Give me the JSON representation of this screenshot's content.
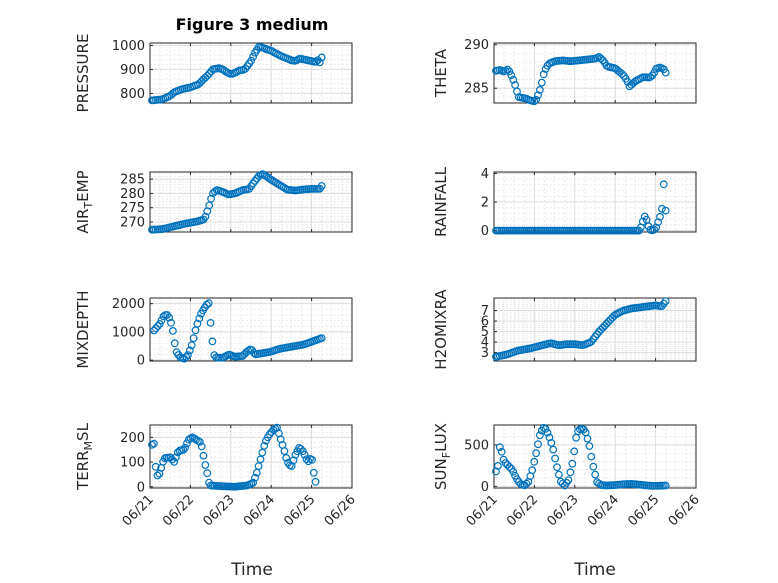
{
  "figure": {
    "title": "Figure 3 medium",
    "xlabel": "Time",
    "xticks": [
      "06/21",
      "06/22",
      "06/23",
      "06/24",
      "06/25",
      "06/26"
    ]
  },
  "colors": {
    "marker": "#0072BD",
    "axes": "#262626",
    "grid": "#dcdcdc"
  },
  "chart_data": [
    {
      "type": "scatter",
      "ylabel_main": "PRESSURE",
      "ylabel_sub": "",
      "xlim": [
        0,
        5
      ],
      "ylim": [
        760,
        1010
      ],
      "yticks": [
        800,
        900,
        1000
      ],
      "grid": true,
      "anchors": [
        [
          0.05,
          771
        ],
        [
          0.3,
          775
        ],
        [
          0.5,
          790
        ],
        [
          0.6,
          805
        ],
        [
          0.8,
          818
        ],
        [
          1.0,
          825
        ],
        [
          1.2,
          838
        ],
        [
          1.3,
          855
        ],
        [
          1.45,
          878
        ],
        [
          1.55,
          900
        ],
        [
          1.7,
          905
        ],
        [
          1.8,
          900
        ],
        [
          1.9,
          888
        ],
        [
          2.0,
          880
        ],
        [
          2.1,
          885
        ],
        [
          2.2,
          895
        ],
        [
          2.35,
          900
        ],
        [
          2.5,
          935
        ],
        [
          2.6,
          970
        ],
        [
          2.7,
          995
        ],
        [
          2.8,
          990
        ],
        [
          2.9,
          983
        ],
        [
          3.0,
          978
        ],
        [
          3.1,
          968
        ],
        [
          3.25,
          955
        ],
        [
          3.4,
          945
        ],
        [
          3.5,
          938
        ],
        [
          3.6,
          935
        ],
        [
          3.7,
          945
        ],
        [
          3.8,
          942
        ],
        [
          3.9,
          938
        ],
        [
          4.0,
          935
        ],
        [
          4.1,
          930
        ],
        [
          4.15,
          940
        ],
        [
          4.2,
          928
        ],
        [
          4.25,
          950
        ]
      ]
    },
    {
      "type": "scatter",
      "ylabel_main": "THETA",
      "ylabel_sub": "",
      "xlim": [
        0,
        5
      ],
      "ylim": [
        283.3,
        290.2
      ],
      "yticks": [
        285,
        290
      ],
      "grid": true,
      "anchors": [
        [
          0.05,
          287.0
        ],
        [
          0.15,
          287.1
        ],
        [
          0.25,
          286.9
        ],
        [
          0.35,
          287.2
        ],
        [
          0.45,
          286.3
        ],
        [
          0.55,
          285.0
        ],
        [
          0.6,
          284.0
        ],
        [
          0.8,
          283.8
        ],
        [
          0.9,
          283.6
        ],
        [
          1.0,
          283.5
        ],
        [
          1.05,
          283.7
        ],
        [
          1.15,
          285.0
        ],
        [
          1.25,
          287.0
        ],
        [
          1.35,
          287.8
        ],
        [
          1.5,
          288.1
        ],
        [
          1.7,
          288.2
        ],
        [
          1.9,
          288.1
        ],
        [
          2.1,
          288.2
        ],
        [
          2.3,
          288.3
        ],
        [
          2.5,
          288.4
        ],
        [
          2.6,
          288.6
        ],
        [
          2.7,
          288.2
        ],
        [
          2.8,
          287.5
        ],
        [
          3.0,
          287.3
        ],
        [
          3.2,
          286.5
        ],
        [
          3.3,
          285.8
        ],
        [
          3.35,
          285.2
        ],
        [
          3.5,
          285.8
        ],
        [
          3.7,
          286.3
        ],
        [
          3.85,
          286.2
        ],
        [
          3.95,
          286.6
        ],
        [
          4.0,
          287.2
        ],
        [
          4.1,
          287.4
        ],
        [
          4.2,
          287.2
        ],
        [
          4.25,
          286.8
        ]
      ]
    },
    {
      "type": "scatter",
      "ylabel_main": "AIR",
      "ylabel_sub": "T",
      "ylabel_tail": "EMP",
      "xlim": [
        0,
        5
      ],
      "ylim": [
        266.5,
        287.5
      ],
      "yticks": [
        270,
        275,
        280,
        285
      ],
      "grid": true,
      "anchors": [
        [
          0.05,
          267.3
        ],
        [
          0.3,
          267.5
        ],
        [
          0.6,
          268.5
        ],
        [
          0.9,
          269.5
        ],
        [
          1.2,
          270.3
        ],
        [
          1.35,
          271
        ],
        [
          1.45,
          275
        ],
        [
          1.55,
          280
        ],
        [
          1.65,
          281.2
        ],
        [
          1.8,
          280.5
        ],
        [
          1.95,
          279.6
        ],
        [
          2.1,
          280
        ],
        [
          2.3,
          281.2
        ],
        [
          2.45,
          281.5
        ],
        [
          2.55,
          283.5
        ],
        [
          2.7,
          286.2
        ],
        [
          2.8,
          286.8
        ],
        [
          2.9,
          285.8
        ],
        [
          3.0,
          284.8
        ],
        [
          3.2,
          283.0
        ],
        [
          3.4,
          281.3
        ],
        [
          3.6,
          281.0
        ],
        [
          3.8,
          281.4
        ],
        [
          4.0,
          281.6
        ],
        [
          4.2,
          281.6
        ],
        [
          4.25,
          282.6
        ]
      ]
    },
    {
      "type": "scatter",
      "ylabel_main": "RAINFALL",
      "ylabel_sub": "",
      "xlim": [
        0,
        5
      ],
      "ylim": [
        -0.1,
        4.1
      ],
      "yticks": [
        0,
        2,
        4
      ],
      "grid": true,
      "anchors": [
        [
          0.05,
          0
        ],
        [
          3.6,
          0
        ],
        [
          3.65,
          0.3
        ],
        [
          3.7,
          0.8
        ],
        [
          3.75,
          1.1
        ],
        [
          3.8,
          0.5
        ],
        [
          3.85,
          0.1
        ],
        [
          3.9,
          0
        ],
        [
          4.0,
          0.1
        ],
        [
          4.05,
          0.5
        ],
        [
          4.1,
          0.9
        ],
        [
          4.15,
          1.3
        ],
        [
          4.18,
          2.5
        ],
        [
          4.22,
          3.8
        ],
        [
          4.25,
          1.4
        ]
      ]
    },
    {
      "type": "scatter",
      "ylabel_main": "MIXDEPTH",
      "ylabel_sub": "",
      "xlim": [
        0,
        5
      ],
      "ylim": [
        -30,
        2200
      ],
      "yticks": [
        0,
        1000,
        2000
      ],
      "grid": true,
      "anchors": [
        [
          0.1,
          1050
        ],
        [
          0.25,
          1300
        ],
        [
          0.35,
          1600
        ],
        [
          0.45,
          1600
        ],
        [
          0.55,
          1200
        ],
        [
          0.6,
          700
        ],
        [
          0.65,
          300
        ],
        [
          0.75,
          100
        ],
        [
          0.85,
          50
        ],
        [
          0.95,
          200
        ],
        [
          1.05,
          600
        ],
        [
          1.15,
          1200
        ],
        [
          1.25,
          1600
        ],
        [
          1.35,
          1850
        ],
        [
          1.45,
          2050
        ],
        [
          1.5,
          1300
        ],
        [
          1.55,
          600
        ],
        [
          1.6,
          100
        ],
        [
          1.8,
          80
        ],
        [
          1.95,
          200
        ],
        [
          2.1,
          120
        ],
        [
          2.3,
          150
        ],
        [
          2.4,
          300
        ],
        [
          2.5,
          400
        ],
        [
          2.6,
          200
        ],
        [
          2.8,
          250
        ],
        [
          3.0,
          300
        ],
        [
          3.2,
          400
        ],
        [
          3.4,
          450
        ],
        [
          3.6,
          500
        ],
        [
          3.8,
          550
        ],
        [
          4.0,
          650
        ],
        [
          4.25,
          780
        ]
      ]
    },
    {
      "type": "scatter",
      "ylabel_main": "H2OMIXRA",
      "ylabel_sub": "",
      "xlim": [
        0,
        5
      ],
      "ylim": [
        2.2,
        8.2
      ],
      "yticks": [
        3,
        4,
        5,
        6,
        7
      ],
      "grid": true,
      "anchors": [
        [
          0.05,
          2.6
        ],
        [
          0.3,
          2.8
        ],
        [
          0.6,
          3.2
        ],
        [
          0.9,
          3.4
        ],
        [
          1.2,
          3.7
        ],
        [
          1.4,
          3.9
        ],
        [
          1.6,
          3.7
        ],
        [
          1.8,
          3.8
        ],
        [
          2.0,
          3.8
        ],
        [
          2.2,
          3.7
        ],
        [
          2.4,
          4.0
        ],
        [
          2.6,
          5.0
        ],
        [
          2.8,
          5.8
        ],
        [
          3.0,
          6.6
        ],
        [
          3.2,
          7.0
        ],
        [
          3.4,
          7.2
        ],
        [
          3.6,
          7.3
        ],
        [
          3.8,
          7.4
        ],
        [
          4.0,
          7.5
        ],
        [
          4.15,
          7.4
        ],
        [
          4.25,
          7.9
        ]
      ]
    },
    {
      "type": "scatter",
      "ylabel_main": "TERR",
      "ylabel_sub": "M",
      "ylabel_tail": "SL",
      "xlim": [
        0,
        5
      ],
      "ylim": [
        -5,
        250
      ],
      "yticks": [
        0,
        100,
        200
      ],
      "grid": true,
      "anchors": [
        [
          0.05,
          170
        ],
        [
          0.1,
          175
        ],
        [
          0.15,
          60
        ],
        [
          0.2,
          40
        ],
        [
          0.25,
          60
        ],
        [
          0.3,
          90
        ],
        [
          0.35,
          115
        ],
        [
          0.5,
          120
        ],
        [
          0.6,
          100
        ],
        [
          0.7,
          145
        ],
        [
          0.85,
          150
        ],
        [
          0.95,
          190
        ],
        [
          1.05,
          200
        ],
        [
          1.15,
          190
        ],
        [
          1.25,
          180
        ],
        [
          1.3,
          150
        ],
        [
          1.35,
          100
        ],
        [
          1.4,
          70
        ],
        [
          1.45,
          20
        ],
        [
          1.5,
          5
        ],
        [
          1.8,
          2
        ],
        [
          2.1,
          0
        ],
        [
          2.4,
          5
        ],
        [
          2.55,
          15
        ],
        [
          2.65,
          60
        ],
        [
          2.75,
          120
        ],
        [
          2.85,
          180
        ],
        [
          2.95,
          210
        ],
        [
          3.05,
          230
        ],
        [
          3.15,
          240
        ],
        [
          3.2,
          210
        ],
        [
          3.3,
          160
        ],
        [
          3.4,
          100
        ],
        [
          3.5,
          80
        ],
        [
          3.6,
          130
        ],
        [
          3.7,
          160
        ],
        [
          3.8,
          140
        ],
        [
          3.9,
          100
        ],
        [
          4.0,
          120
        ],
        [
          4.05,
          60
        ],
        [
          4.1,
          20
        ]
      ]
    },
    {
      "type": "scatter",
      "ylabel_main": "SUN",
      "ylabel_sub": "F",
      "ylabel_tail": "LUX",
      "xlim": [
        0,
        5
      ],
      "ylim": [
        -20,
        740
      ],
      "yticks": [
        0,
        500
      ],
      "grid": true,
      "anchors": [
        [
          0.05,
          180
        ],
        [
          0.1,
          250
        ],
        [
          0.15,
          500
        ],
        [
          0.25,
          300
        ],
        [
          0.35,
          250
        ],
        [
          0.45,
          200
        ],
        [
          0.55,
          100
        ],
        [
          0.65,
          30
        ],
        [
          0.75,
          10
        ],
        [
          0.85,
          50
        ],
        [
          0.95,
          200
        ],
        [
          1.05,
          420
        ],
        [
          1.15,
          650
        ],
        [
          1.25,
          720
        ],
        [
          1.35,
          620
        ],
        [
          1.45,
          480
        ],
        [
          1.55,
          250
        ],
        [
          1.65,
          60
        ],
        [
          1.75,
          10
        ],
        [
          1.85,
          80
        ],
        [
          1.95,
          300
        ],
        [
          2.05,
          650
        ],
        [
          2.15,
          700
        ],
        [
          2.25,
          680
        ],
        [
          2.35,
          520
        ],
        [
          2.45,
          250
        ],
        [
          2.55,
          50
        ],
        [
          2.65,
          15
        ],
        [
          2.8,
          10
        ],
        [
          3.0,
          15
        ],
        [
          3.2,
          25
        ],
        [
          3.4,
          30
        ],
        [
          3.6,
          20
        ],
        [
          3.8,
          10
        ],
        [
          4.0,
          5
        ],
        [
          4.25,
          10
        ]
      ]
    }
  ]
}
